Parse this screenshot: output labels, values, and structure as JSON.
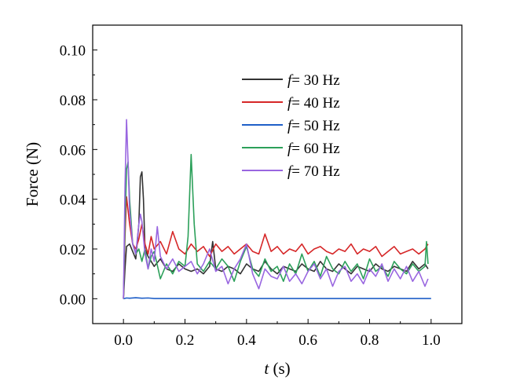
{
  "chart_data": {
    "type": "line",
    "title": "",
    "xlabel": {
      "var": "t",
      "unit": " (s)"
    },
    "ylabel": "Force (N)",
    "xlim": [
      -0.1,
      1.1
    ],
    "ylim": [
      -0.01,
      0.11
    ],
    "xticks": [
      0.0,
      0.2,
      0.4,
      0.6,
      0.8,
      1.0
    ],
    "xtick_labels": [
      "0.0",
      "0.2",
      "0.4",
      "0.6",
      "0.8",
      "1.0"
    ],
    "yticks": [
      0.0,
      0.02,
      0.04,
      0.06,
      0.08,
      0.1
    ],
    "ytick_labels": [
      "0.00",
      "0.02",
      "0.04",
      "0.06",
      "0.08",
      "0.10"
    ],
    "grid": false,
    "legend_position": "upper-right",
    "series": [
      {
        "name": "f = 30 Hz",
        "var": "f",
        "label": "= 30 Hz",
        "color": "#333333",
        "x": [
          0.0,
          0.005,
          0.01,
          0.02,
          0.03,
          0.04,
          0.05,
          0.055,
          0.06,
          0.065,
          0.07,
          0.08,
          0.09,
          0.1,
          0.12,
          0.14,
          0.16,
          0.18,
          0.2,
          0.22,
          0.24,
          0.26,
          0.28,
          0.29,
          0.3,
          0.32,
          0.34,
          0.36,
          0.38,
          0.4,
          0.42,
          0.44,
          0.46,
          0.48,
          0.5,
          0.52,
          0.54,
          0.56,
          0.58,
          0.6,
          0.62,
          0.64,
          0.66,
          0.68,
          0.7,
          0.72,
          0.74,
          0.76,
          0.78,
          0.8,
          0.82,
          0.84,
          0.86,
          0.88,
          0.9,
          0.92,
          0.94,
          0.96,
          0.98,
          0.99
        ],
        "y": [
          0.0,
          0.012,
          0.021,
          0.022,
          0.019,
          0.016,
          0.03,
          0.049,
          0.051,
          0.04,
          0.02,
          0.017,
          0.015,
          0.013,
          0.016,
          0.012,
          0.011,
          0.014,
          0.012,
          0.011,
          0.012,
          0.01,
          0.013,
          0.023,
          0.012,
          0.011,
          0.013,
          0.012,
          0.01,
          0.014,
          0.012,
          0.011,
          0.015,
          0.012,
          0.01,
          0.013,
          0.012,
          0.011,
          0.014,
          0.012,
          0.011,
          0.015,
          0.012,
          0.011,
          0.014,
          0.012,
          0.01,
          0.013,
          0.012,
          0.011,
          0.014,
          0.012,
          0.011,
          0.013,
          0.012,
          0.011,
          0.015,
          0.012,
          0.014,
          0.012
        ]
      },
      {
        "name": "f = 40 Hz",
        "var": "f",
        "label": "= 40 Hz",
        "color": "#d62728",
        "x": [
          0.0,
          0.005,
          0.01,
          0.02,
          0.03,
          0.04,
          0.05,
          0.06,
          0.07,
          0.08,
          0.09,
          0.1,
          0.12,
          0.14,
          0.16,
          0.18,
          0.2,
          0.22,
          0.24,
          0.26,
          0.28,
          0.3,
          0.32,
          0.34,
          0.36,
          0.38,
          0.4,
          0.42,
          0.44,
          0.46,
          0.48,
          0.5,
          0.52,
          0.54,
          0.56,
          0.58,
          0.6,
          0.62,
          0.64,
          0.66,
          0.68,
          0.7,
          0.72,
          0.74,
          0.76,
          0.78,
          0.8,
          0.82,
          0.84,
          0.86,
          0.88,
          0.9,
          0.92,
          0.94,
          0.96,
          0.98,
          0.99
        ],
        "y": [
          0.0,
          0.025,
          0.041,
          0.03,
          0.022,
          0.02,
          0.024,
          0.03,
          0.022,
          0.018,
          0.025,
          0.02,
          0.023,
          0.018,
          0.027,
          0.02,
          0.018,
          0.022,
          0.019,
          0.021,
          0.017,
          0.022,
          0.019,
          0.021,
          0.018,
          0.02,
          0.022,
          0.019,
          0.018,
          0.026,
          0.019,
          0.021,
          0.018,
          0.02,
          0.019,
          0.022,
          0.018,
          0.02,
          0.021,
          0.019,
          0.018,
          0.02,
          0.019,
          0.022,
          0.018,
          0.02,
          0.019,
          0.021,
          0.017,
          0.019,
          0.021,
          0.018,
          0.019,
          0.02,
          0.018,
          0.02,
          0.022
        ]
      },
      {
        "name": "f = 50 Hz",
        "var": "f",
        "label": "= 50 Hz",
        "color": "#1f5fc8",
        "x": [
          0.0,
          0.01,
          0.02,
          0.04,
          0.06,
          0.08,
          0.1,
          0.2,
          0.4,
          0.6,
          0.8,
          1.0
        ],
        "y": [
          0.0,
          0.0003,
          0.0002,
          0.0004,
          0.0002,
          0.0003,
          0.0001,
          0.0001,
          0.0001,
          0.0001,
          0.0001,
          0.0001
        ]
      },
      {
        "name": "f = 60 Hz",
        "var": "f",
        "label": "= 60 Hz",
        "color": "#2ca05a",
        "x": [
          0.0,
          0.005,
          0.01,
          0.015,
          0.02,
          0.03,
          0.04,
          0.05,
          0.06,
          0.07,
          0.08,
          0.09,
          0.1,
          0.12,
          0.14,
          0.16,
          0.18,
          0.2,
          0.21,
          0.22,
          0.23,
          0.24,
          0.26,
          0.28,
          0.3,
          0.32,
          0.34,
          0.36,
          0.38,
          0.4,
          0.42,
          0.44,
          0.46,
          0.48,
          0.5,
          0.52,
          0.54,
          0.56,
          0.58,
          0.6,
          0.62,
          0.64,
          0.66,
          0.68,
          0.7,
          0.72,
          0.74,
          0.76,
          0.78,
          0.8,
          0.82,
          0.84,
          0.86,
          0.88,
          0.9,
          0.92,
          0.94,
          0.96,
          0.98,
          0.985,
          0.99
        ],
        "y": [
          0.0,
          0.03,
          0.052,
          0.055,
          0.04,
          0.022,
          0.018,
          0.02,
          0.015,
          0.02,
          0.012,
          0.017,
          0.019,
          0.008,
          0.014,
          0.01,
          0.015,
          0.013,
          0.025,
          0.058,
          0.03,
          0.014,
          0.011,
          0.015,
          0.012,
          0.016,
          0.013,
          0.007,
          0.015,
          0.021,
          0.012,
          0.009,
          0.016,
          0.011,
          0.013,
          0.007,
          0.014,
          0.01,
          0.018,
          0.011,
          0.015,
          0.009,
          0.017,
          0.012,
          0.01,
          0.015,
          0.011,
          0.014,
          0.008,
          0.016,
          0.011,
          0.013,
          0.009,
          0.015,
          0.012,
          0.01,
          0.014,
          0.011,
          0.013,
          0.023,
          0.014
        ]
      },
      {
        "name": "f = 70 Hz",
        "var": "f",
        "label": "= 70 Hz",
        "color": "#9966e0",
        "x": [
          0.0,
          0.005,
          0.01,
          0.015,
          0.02,
          0.03,
          0.04,
          0.05,
          0.055,
          0.06,
          0.07,
          0.08,
          0.09,
          0.1,
          0.11,
          0.12,
          0.14,
          0.16,
          0.18,
          0.2,
          0.22,
          0.24,
          0.26,
          0.28,
          0.3,
          0.32,
          0.34,
          0.36,
          0.38,
          0.4,
          0.42,
          0.44,
          0.46,
          0.48,
          0.5,
          0.52,
          0.54,
          0.56,
          0.58,
          0.6,
          0.62,
          0.64,
          0.66,
          0.68,
          0.7,
          0.72,
          0.74,
          0.76,
          0.78,
          0.8,
          0.82,
          0.84,
          0.86,
          0.88,
          0.9,
          0.92,
          0.94,
          0.96,
          0.98,
          0.99
        ],
        "y": [
          0.0,
          0.045,
          0.072,
          0.055,
          0.035,
          0.022,
          0.018,
          0.03,
          0.034,
          0.031,
          0.018,
          0.012,
          0.02,
          0.015,
          0.029,
          0.017,
          0.012,
          0.016,
          0.011,
          0.013,
          0.015,
          0.01,
          0.014,
          0.02,
          0.011,
          0.013,
          0.006,
          0.012,
          0.016,
          0.022,
          0.01,
          0.004,
          0.012,
          0.009,
          0.008,
          0.013,
          0.007,
          0.01,
          0.006,
          0.011,
          0.014,
          0.008,
          0.012,
          0.005,
          0.011,
          0.013,
          0.007,
          0.01,
          0.006,
          0.012,
          0.009,
          0.014,
          0.007,
          0.012,
          0.008,
          0.013,
          0.007,
          0.011,
          0.005,
          0.008
        ]
      }
    ]
  }
}
